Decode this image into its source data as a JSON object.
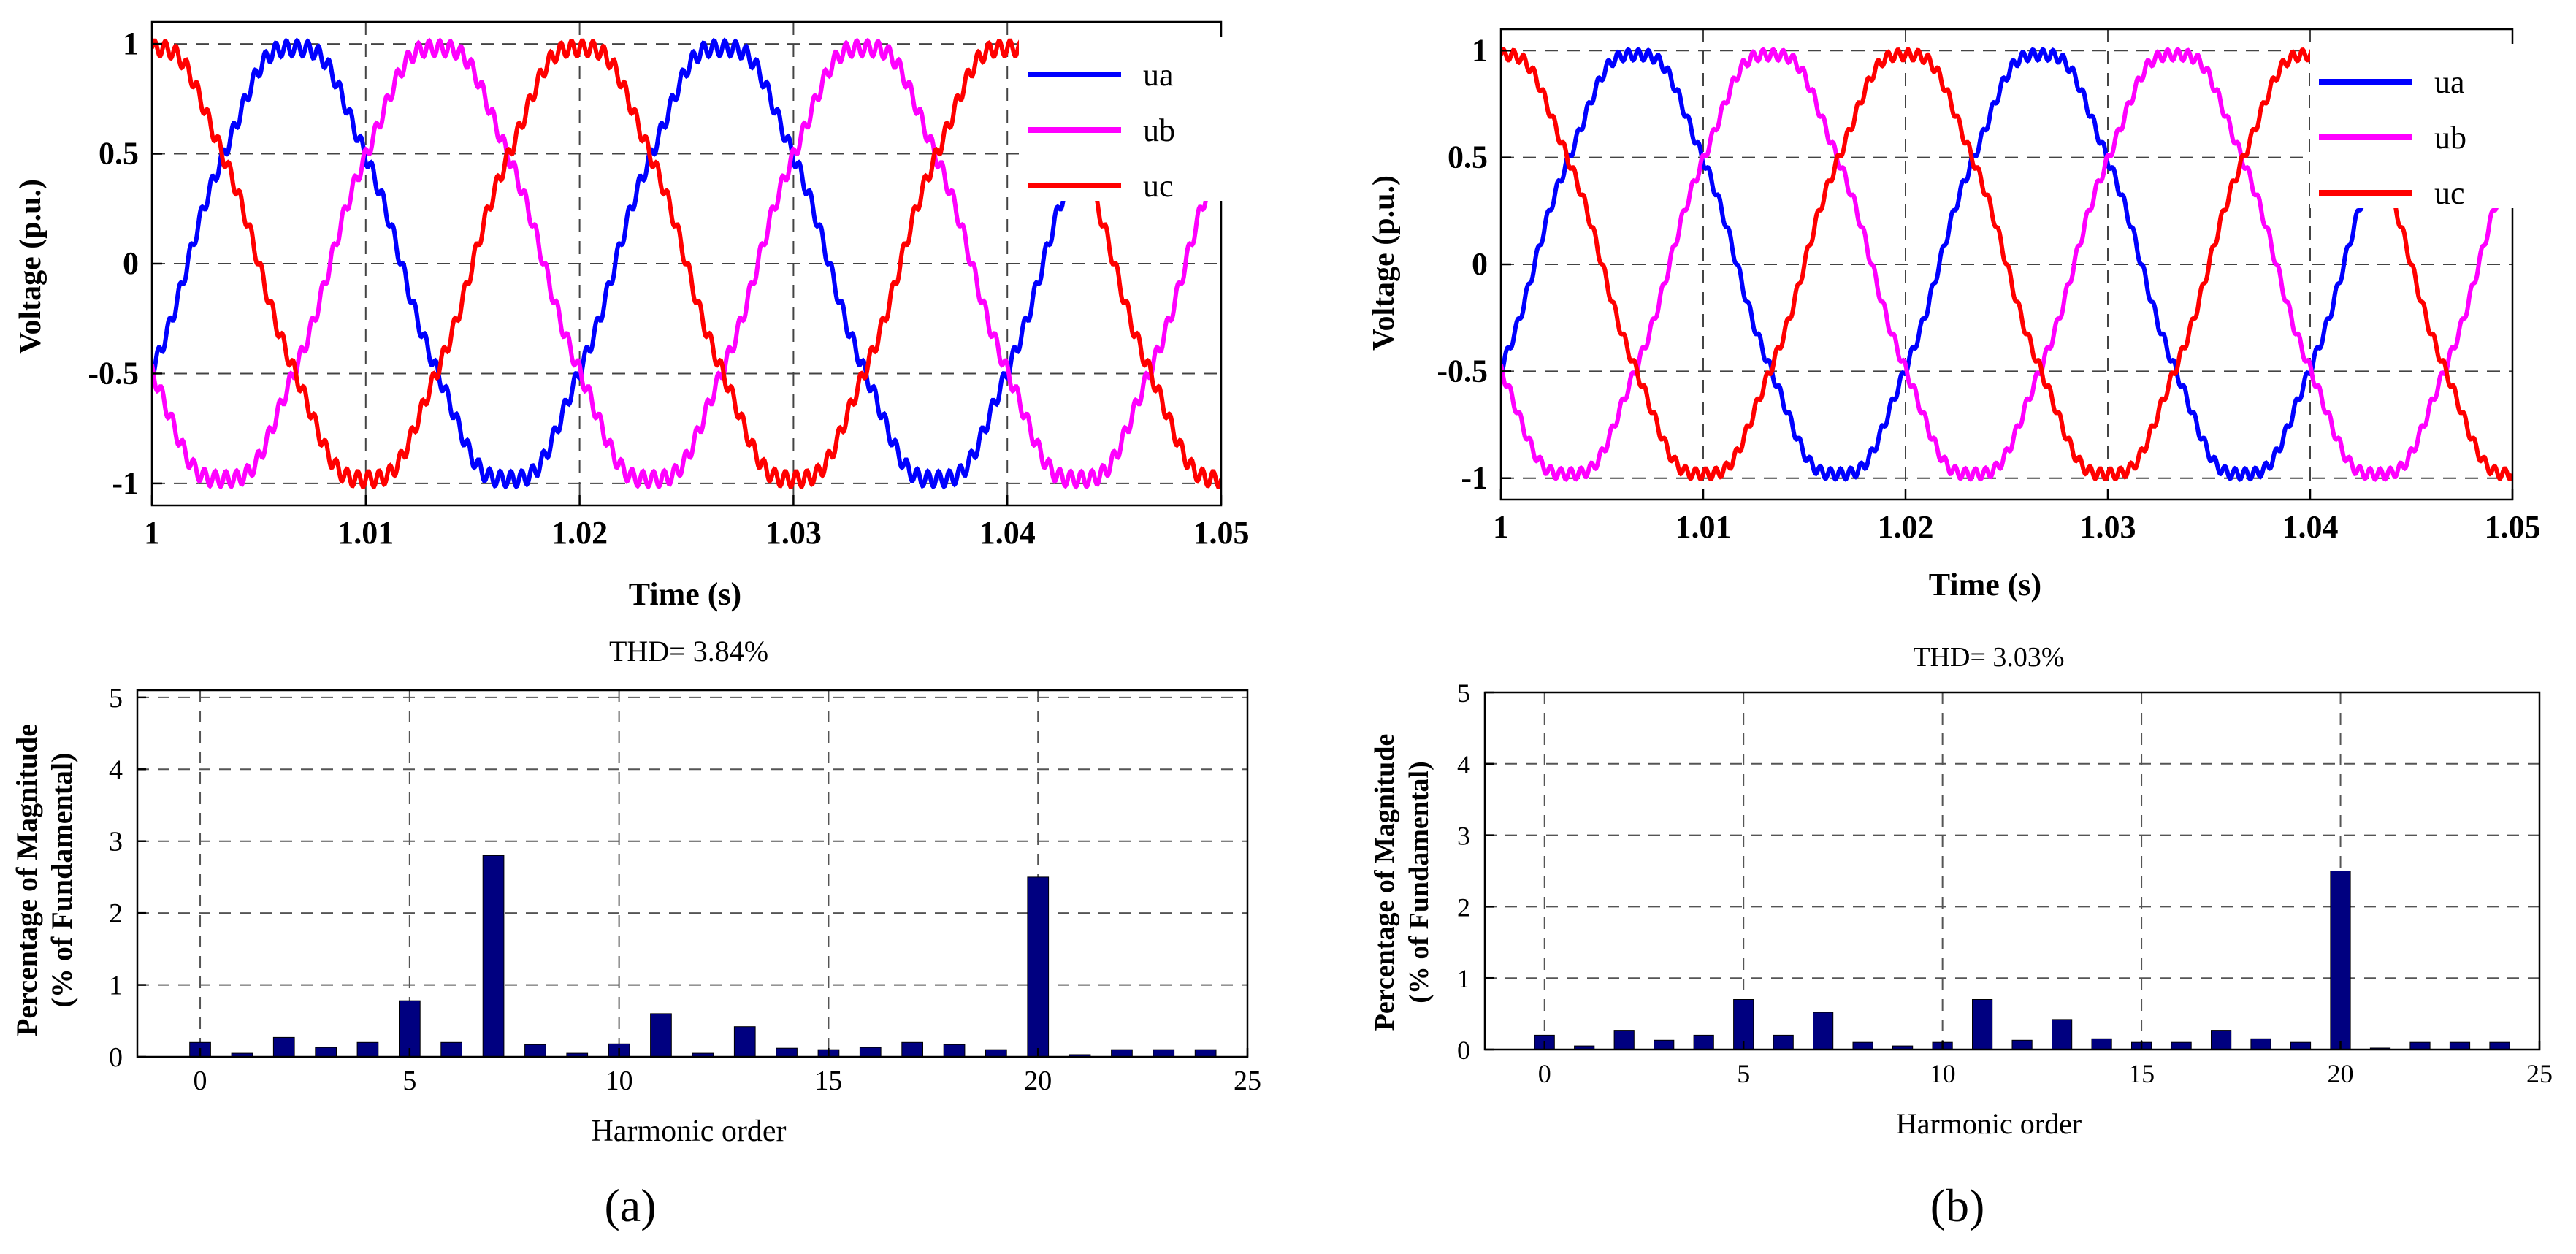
{
  "panels": [
    {
      "label": "(a)",
      "voltage": {
        "xlabel": "Time (s)",
        "ylabel": "Voltage (p.u.)",
        "xlim": [
          1,
          1.05
        ],
        "ylim": [
          -1.1,
          1.1
        ],
        "xticks": [
          1,
          1.01,
          1.02,
          1.03,
          1.04,
          1.05
        ],
        "xtick_labels": [
          "1",
          "1.01",
          "1.02",
          "1.03",
          "1.04",
          "1.05"
        ],
        "yticks": [
          -1,
          -0.5,
          0,
          0.5,
          1
        ],
        "ytick_labels": [
          "-1",
          "-0.5",
          "0",
          "0.5",
          "1"
        ],
        "legend": [
          "ua",
          "ub",
          "uc"
        ],
        "ripple": 0.035
      },
      "thd_label": "THD= 3.84%",
      "spectrum": {
        "xlabel": "Harmonic order",
        "ylabel_line1": "Percentage of Magnitude",
        "ylabel_line2": "(% of Fundamental)",
        "xlim": [
          -1.5,
          25
        ],
        "ylim": [
          0,
          5.1
        ],
        "xticks": [
          0,
          5,
          10,
          15,
          20,
          25
        ],
        "xtick_labels": [
          "0",
          "5",
          "10",
          "15",
          "20",
          "25"
        ],
        "yticks": [
          0,
          1,
          2,
          3,
          4,
          5
        ],
        "ytick_labels": [
          "0",
          "1",
          "2",
          "3",
          "4",
          "5"
        ]
      }
    },
    {
      "label": "(b)",
      "voltage": {
        "xlabel": "Time (s)",
        "ylabel": "Voltage (p.u.)",
        "xlim": [
          1,
          1.05
        ],
        "ylim": [
          -1.1,
          1.1
        ],
        "xticks": [
          1,
          1.01,
          1.02,
          1.03,
          1.04,
          1.05
        ],
        "xtick_labels": [
          "1",
          "1.01",
          "1.02",
          "1.03",
          "1.04",
          "1.05"
        ],
        "yticks": [
          -1,
          -0.5,
          0,
          0.5,
          1
        ],
        "ytick_labels": [
          "-1",
          "-0.5",
          "0",
          "0.5",
          "1"
        ],
        "legend": [
          "ua",
          "ub",
          "uc"
        ],
        "ripple": 0.025
      },
      "thd_label": "THD= 3.03%",
      "spectrum": {
        "xlabel": "Harmonic order",
        "ylabel_line1": "Percentage of Magnitude",
        "ylabel_line2": "(% of Fundamental)",
        "xlim": [
          -1.5,
          25
        ],
        "ylim": [
          0,
          5
        ],
        "xticks": [
          0,
          5,
          10,
          15,
          20,
          25
        ],
        "xtick_labels": [
          "0",
          "5",
          "10",
          "15",
          "20",
          "25"
        ],
        "yticks": [
          0,
          1,
          2,
          3,
          4,
          5
        ],
        "ytick_labels": [
          "0",
          "1",
          "2",
          "3",
          "4",
          "5"
        ]
      }
    }
  ],
  "chart_data": [
    {
      "type": "line",
      "title": "",
      "xlabel": "Time (s)",
      "ylabel": "Voltage (p.u.)",
      "xlim": [
        1,
        1.05
      ],
      "ylim": [
        -1.1,
        1.1
      ],
      "frequency_hz": 50,
      "series": [
        {
          "name": "ua",
          "color": "#0000ff",
          "amplitude": 1.0,
          "phase_deg": -30
        },
        {
          "name": "ub",
          "color": "#ff00ff",
          "amplitude": 1.0,
          "phase_deg": -150
        },
        {
          "name": "uc",
          "color": "#ff0000",
          "amplitude": 1.0,
          "phase_deg": 90
        }
      ],
      "legend_position": "top-right",
      "grid": true
    },
    {
      "type": "bar",
      "title": "THD= 3.84%",
      "xlabel": "Harmonic order",
      "ylabel": "Percentage of Magnitude (% of Fundamental)",
      "categories": [
        0,
        1,
        2,
        3,
        4,
        5,
        6,
        7,
        8,
        9,
        10,
        11,
        12,
        13,
        14,
        15,
        16,
        17,
        18,
        19,
        20,
        21,
        22,
        23,
        24
      ],
      "values": [
        0.2,
        0.05,
        0.27,
        0.13,
        0.2,
        0.78,
        0.2,
        2.8,
        0.17,
        0.05,
        0.18,
        0.6,
        0.05,
        0.42,
        0.12,
        0.1,
        0.13,
        0.2,
        0.17,
        0.1,
        2.5,
        0.03,
        0.1,
        0.1,
        0.1
      ],
      "color": "#000080",
      "ylim": [
        0,
        5.1
      ],
      "grid": true
    },
    {
      "type": "line",
      "title": "",
      "xlabel": "Time (s)",
      "ylabel": "Voltage (p.u.)",
      "xlim": [
        1,
        1.05
      ],
      "ylim": [
        -1.1,
        1.1
      ],
      "frequency_hz": 50,
      "series": [
        {
          "name": "ua",
          "color": "#0000ff",
          "amplitude": 1.0,
          "phase_deg": -30
        },
        {
          "name": "ub",
          "color": "#ff00ff",
          "amplitude": 1.0,
          "phase_deg": -150
        },
        {
          "name": "uc",
          "color": "#ff0000",
          "amplitude": 1.0,
          "phase_deg": 90
        }
      ],
      "legend_position": "top-right",
      "grid": true
    },
    {
      "type": "bar",
      "title": "THD= 3.03%",
      "xlabel": "Harmonic order",
      "ylabel": "Percentage of Magnitude (% of Fundamental)",
      "categories": [
        0,
        1,
        2,
        3,
        4,
        5,
        6,
        7,
        8,
        9,
        10,
        11,
        12,
        13,
        14,
        15,
        16,
        17,
        18,
        19,
        20,
        21,
        22,
        23,
        24
      ],
      "values": [
        0.2,
        0.05,
        0.27,
        0.13,
        0.2,
        0.7,
        0.2,
        0.52,
        0.1,
        0.05,
        0.1,
        0.7,
        0.13,
        0.42,
        0.15,
        0.1,
        0.1,
        0.27,
        0.15,
        0.1,
        2.5,
        0.02,
        0.1,
        0.1,
        0.1
      ],
      "color": "#000080",
      "ylim": [
        0,
        5
      ],
      "grid": true
    }
  ]
}
